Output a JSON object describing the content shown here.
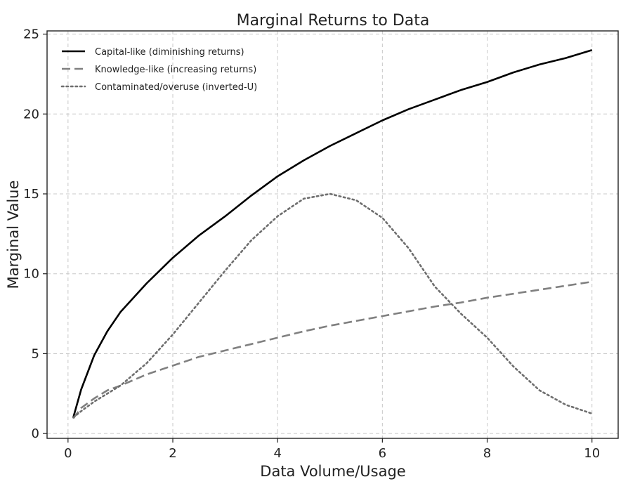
{
  "chart_data": {
    "type": "line",
    "title": "Marginal Returns to Data",
    "xlabel": "Data Volume/Usage",
    "ylabel": "Marginal Value",
    "xlim": [
      -0.4,
      10.5
    ],
    "ylim": [
      -0.3,
      25.2
    ],
    "xticks": [
      0,
      2,
      4,
      6,
      8,
      10
    ],
    "yticks": [
      0,
      5,
      10,
      15,
      20,
      25
    ],
    "grid": true,
    "legend_position": "top-left",
    "series": [
      {
        "name": "Capital-like (diminishing returns)",
        "color": "#000000",
        "style": "solid",
        "x": [
          0.1,
          0.25,
          0.5,
          0.75,
          1,
          1.5,
          2,
          2.5,
          3,
          3.5,
          4,
          4.5,
          5,
          5.5,
          6,
          6.5,
          7,
          7.5,
          8,
          8.5,
          9,
          9.5,
          10
        ],
        "y": [
          1.0,
          2.75,
          4.9,
          6.4,
          7.6,
          9.4,
          11.0,
          12.4,
          13.6,
          14.9,
          16.1,
          17.1,
          18.0,
          18.8,
          19.6,
          20.3,
          20.9,
          21.5,
          22.0,
          22.6,
          23.1,
          23.5,
          24.0
        ]
      },
      {
        "name": "Knowledge-like (increasing returns)",
        "color": "#808080",
        "style": "dashed",
        "x": [
          0.1,
          0.25,
          0.5,
          0.75,
          1,
          1.5,
          2,
          2.5,
          3,
          3.5,
          4,
          4.5,
          5,
          5.5,
          6,
          6.5,
          7,
          7.5,
          8,
          8.5,
          9,
          9.5,
          10
        ],
        "y": [
          0.95,
          1.6,
          2.2,
          2.7,
          3.0,
          3.7,
          4.25,
          4.8,
          5.2,
          5.6,
          6.0,
          6.4,
          6.75,
          7.05,
          7.35,
          7.65,
          7.95,
          8.2,
          8.5,
          8.75,
          9.0,
          9.25,
          9.5
        ]
      },
      {
        "name": "Contaminated/overuse (inverted-U)",
        "color": "#6e6e6e",
        "style": "dotted",
        "x": [
          0.1,
          0.25,
          0.5,
          0.75,
          1,
          1.5,
          2,
          2.5,
          3,
          3.5,
          4,
          4.5,
          5,
          5.5,
          6,
          6.5,
          7,
          7.5,
          8,
          8.5,
          9,
          9.5,
          10
        ],
        "y": [
          1.0,
          1.4,
          2.0,
          2.5,
          3.0,
          4.4,
          6.2,
          8.2,
          10.2,
          12.1,
          13.6,
          14.7,
          15.0,
          14.6,
          13.5,
          11.6,
          9.2,
          7.5,
          6.0,
          4.2,
          2.7,
          1.8,
          1.25
        ]
      }
    ]
  }
}
